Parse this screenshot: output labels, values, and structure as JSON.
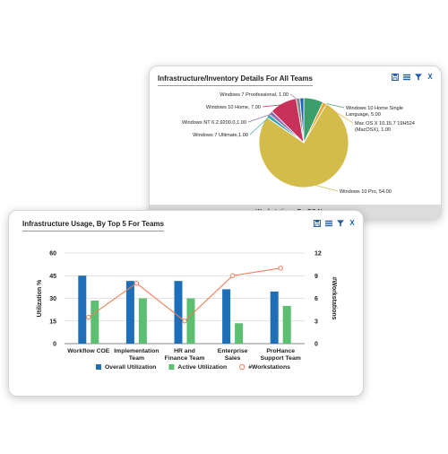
{
  "pie_panel": {
    "title": "Infrastructure/Inventory Details For All Teams",
    "footer": "Workstations By OS Name",
    "tools": [
      "save-icon",
      "list-icon",
      "filter-icon",
      "close-icon"
    ],
    "close_label": "X"
  },
  "bar_panel": {
    "title": "Infrastructure Usage, By Top 5 For Teams",
    "tools": [
      "save-icon",
      "list-icon",
      "filter-icon",
      "close-icon"
    ],
    "close_label": "X"
  },
  "chart_data": [
    {
      "type": "pie",
      "title": "Infrastructure/Inventory Details For All Teams",
      "xlabel": "Workstations By OS Name",
      "slices": [
        {
          "label": "Windows 10 Pro, 54.00",
          "value": 54,
          "color": "#d4bc4a"
        },
        {
          "label": "Windows 7 Ultimate,1.00",
          "value": 1,
          "color": "#3fa9b3"
        },
        {
          "label": "Windows NT 6.2.9200.0,1.00",
          "value": 1,
          "color": "#8a6fb0"
        },
        {
          "label": "Windows 10 Home, 7.00",
          "value": 7,
          "color": "#c8325a"
        },
        {
          "label": "Windows 7 Proofessional, 1.00",
          "value": 1,
          "color": "#8a8a8a"
        },
        {
          "label": "",
          "value": 1,
          "color": "#1f63b6"
        },
        {
          "label": "Windows 10 Home Single Language, 5.00",
          "value": 5,
          "color": "#3a9f6a"
        },
        {
          "label": "Mac OS X 10.15.7 19H524 (MacOSX), 1.00",
          "value": 1,
          "color": "#e9a93a"
        }
      ]
    },
    {
      "type": "bar",
      "title": "Infrastructure Usage, By Top 5 For Teams",
      "categories": [
        "Workflow COE",
        "Implementation Team",
        "HR and Finance Team",
        "Enterprise Sales",
        "ProHance Support Team"
      ],
      "category_lines": [
        [
          "Workflow COE"
        ],
        [
          "Implementation",
          "Team"
        ],
        [
          "HR and",
          "Finance Team"
        ],
        [
          "Enterprise",
          "Sales"
        ],
        [
          "ProHance",
          "Support Team"
        ]
      ],
      "ylabel": "Utilization %",
      "y2label": "#Workstations",
      "ylim": [
        0,
        60
      ],
      "yticks": [
        0,
        15,
        30,
        45,
        60
      ],
      "y2lim": [
        0,
        12
      ],
      "y2ticks": [
        0,
        3,
        6,
        9,
        12
      ],
      "series": [
        {
          "name": "Overall Utilization",
          "type": "bar",
          "axis": "left",
          "color": "#1f6fb8",
          "values": [
            45,
            41.5,
            41.5,
            36,
            34.5
          ]
        },
        {
          "name": "Active Utilization",
          "type": "bar",
          "axis": "left",
          "color": "#5cbf72",
          "values": [
            28.5,
            30,
            30,
            13.5,
            25
          ]
        },
        {
          "name": "#Workstations",
          "type": "line",
          "axis": "right",
          "color": "#ef7d57",
          "values": [
            3.5,
            8,
            3,
            9,
            10
          ]
        }
      ],
      "legend": "bottom",
      "grid": true
    }
  ]
}
